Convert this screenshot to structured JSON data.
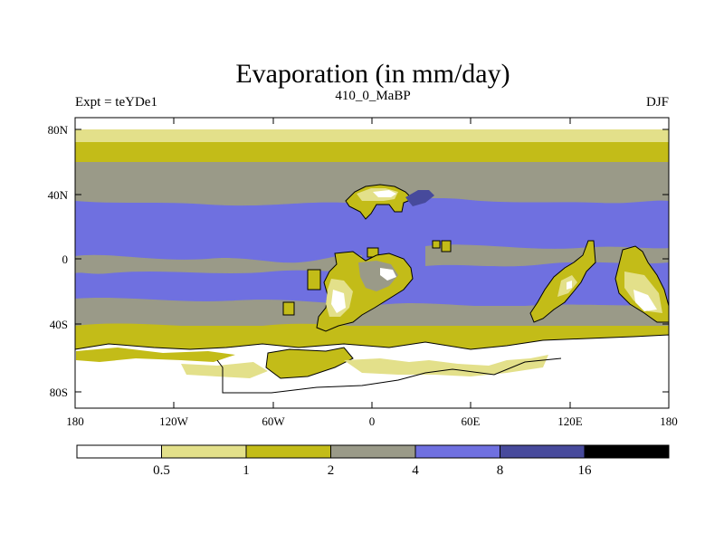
{
  "title": "Evaporation (in mm/day)",
  "left_string": "Expt = teYDe1",
  "center_string": "410_0_MaBP",
  "right_string": "DJF",
  "colors": {
    "c0": "#ffffff",
    "c1": "#e3e08a",
    "c2": "#c3bc18",
    "c3": "#9a9a88",
    "c4": "#6f70e0",
    "c5": "#474a9c",
    "c6": "#000000"
  },
  "map": {
    "lat_labels": [
      "80N",
      "40N",
      "0",
      "40S",
      "80S"
    ],
    "lon_labels": [
      "180",
      "120W",
      "60W",
      "0",
      "60E",
      "120E",
      "180"
    ]
  },
  "colorbar": {
    "levels": [
      "0.5",
      "1",
      "2",
      "4",
      "8",
      "16"
    ]
  },
  "chart_data": {
    "type": "heatmap",
    "title": "Evaporation (in mm/day)",
    "variable": "Evaporation",
    "units": "mm/day",
    "lat_ticks": [
      80,
      40,
      0,
      -40,
      -80
    ],
    "lon_ticks": [
      -180,
      -120,
      -60,
      0,
      60,
      120,
      180
    ],
    "contour_levels": [
      0.5,
      1,
      2,
      4,
      8,
      16
    ]
  }
}
